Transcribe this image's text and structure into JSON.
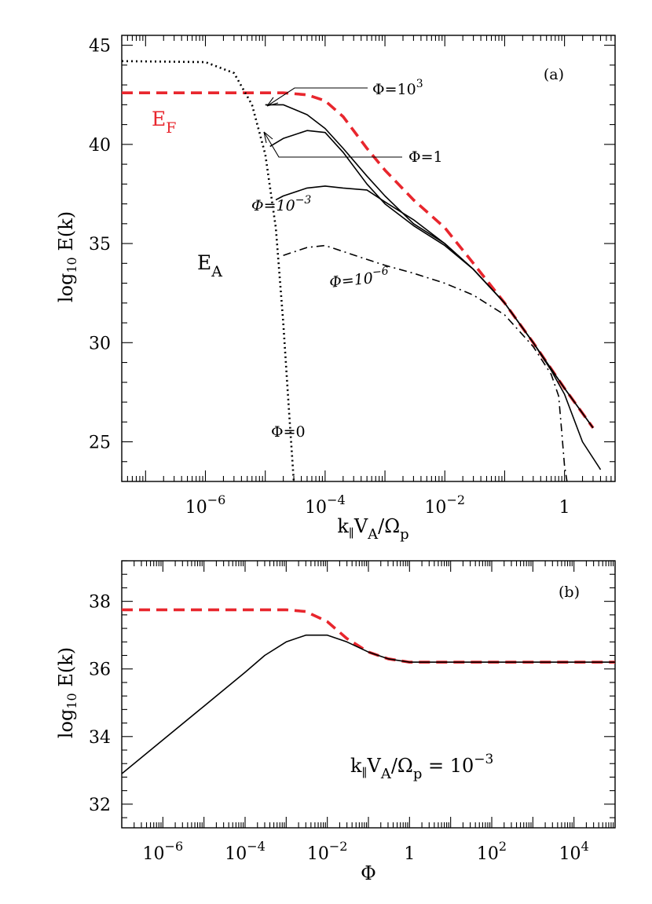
{
  "chart_data": [
    {
      "panel_label": "(a)",
      "type": "line",
      "x_scale": "log",
      "xlabel": "k∥VA/Ωp",
      "ylabel": "log10 E(k)",
      "xlim": [
        4e-08,
        7
      ],
      "ylim": [
        23,
        45.5
      ],
      "x_ticks": [
        {
          "value": 1e-06,
          "base": "10",
          "exp": "−6"
        },
        {
          "value": 0.0001,
          "base": "10",
          "exp": "−4"
        },
        {
          "value": 0.01,
          "base": "10",
          "exp": "−2"
        },
        {
          "value": 1,
          "base": "1",
          "exp": ""
        }
      ],
      "y_ticks": [
        25,
        30,
        35,
        40,
        45
      ],
      "series": [
        {
          "style": "dashed",
          "color": "#e8262d",
          "x": [
            4e-08,
            1e-06,
            1e-05,
            2e-05,
            5e-05,
            0.0001,
            0.0002,
            0.0005,
            0.001,
            0.003,
            0.01,
            0.03,
            0.1,
            0.3,
            1,
            3
          ],
          "y": [
            42.6,
            42.6,
            42.6,
            42.6,
            42.5,
            42.2,
            41.4,
            39.8,
            38.7,
            37.2,
            35.8,
            34.0,
            32.0,
            30.0,
            27.7,
            25.7
          ]
        },
        {
          "style": "dotted",
          "color": "#000000",
          "x": [
            4e-08,
            1e-06,
            3e-06,
            6e-06,
            1e-05,
            1.5e-05,
            2e-05,
            2.5e-05,
            3e-05
          ],
          "y": [
            44.2,
            44.15,
            43.6,
            42.0,
            39.5,
            35.8,
            31.0,
            26.5,
            23.0
          ]
        },
        {
          "style": "solid",
          "color": "#000000",
          "x": [
            1e-05,
            2e-05,
            5e-05,
            0.0001,
            0.0002,
            0.0005,
            0.001,
            0.003,
            0.01,
            0.03,
            0.1,
            0.3,
            1,
            3
          ],
          "y": [
            42.0,
            42.0,
            41.5,
            40.8,
            39.8,
            38.4,
            37.4,
            36.0,
            35.0,
            33.7,
            32.0,
            30.0,
            27.7,
            25.7
          ]
        },
        {
          "style": "solid",
          "color": "#000000",
          "x": [
            1.2e-05,
            2e-05,
            5e-05,
            0.0001,
            0.0002,
            0.0005,
            0.001,
            0.003,
            0.01,
            0.03,
            0.1,
            0.3,
            1,
            3
          ],
          "y": [
            39.9,
            40.3,
            40.7,
            40.6,
            39.6,
            38.0,
            37.0,
            35.9,
            34.9,
            33.7,
            32.0,
            30.0,
            27.7,
            25.7
          ]
        },
        {
          "style": "solid",
          "color": "#000000",
          "x": [
            1.5e-05,
            2e-05,
            5e-05,
            0.0001,
            0.0002,
            0.0005,
            0.001,
            0.003,
            0.01,
            0.03,
            0.1,
            0.3,
            0.6,
            1,
            2,
            4
          ],
          "y": [
            37.2,
            37.4,
            37.8,
            37.9,
            37.8,
            37.7,
            37.1,
            36.2,
            35.0,
            33.7,
            32.0,
            30.0,
            28.6,
            27.4,
            25.0,
            23.6
          ]
        },
        {
          "style": "dashdot",
          "color": "#000000",
          "x": [
            2e-05,
            5e-05,
            0.0001,
            0.0002,
            0.0005,
            0.001,
            0.003,
            0.01,
            0.03,
            0.1,
            0.3,
            0.6,
            0.8,
            0.9,
            1.0,
            1.1
          ],
          "y": [
            34.4,
            34.8,
            34.9,
            34.6,
            34.2,
            33.9,
            33.5,
            33.0,
            32.4,
            31.4,
            29.8,
            28.4,
            27.3,
            25.5,
            23.8,
            23.0
          ]
        }
      ],
      "annotations": {
        "phi_1e3": {
          "base": "Φ=10",
          "exp": "3"
        },
        "phi_1": {
          "text": "Φ=1"
        },
        "phi_1em3": {
          "base": "Φ=10",
          "exp": "−3"
        },
        "phi_1em6": {
          "base": "Φ=10",
          "exp": "−6"
        },
        "phi_0": {
          "text": "Φ=0"
        },
        "e_f": {
          "base": "E",
          "sub": "F",
          "color": "#e8262d"
        },
        "e_a": {
          "base": "E",
          "sub": "A"
        }
      }
    },
    {
      "panel_label": "(b)",
      "type": "line",
      "x_scale": "log",
      "xlabel": "Φ",
      "ylabel": "log10 E(k)",
      "xlim": [
        1e-07,
        100000.0
      ],
      "ylim": [
        31.3,
        39.2
      ],
      "x_ticks": [
        {
          "value": 1e-06,
          "base": "10",
          "exp": "−6"
        },
        {
          "value": 0.0001,
          "base": "10",
          "exp": "−4"
        },
        {
          "value": 0.01,
          "base": "10",
          "exp": "−2"
        },
        {
          "value": 1,
          "base": "1",
          "exp": ""
        },
        {
          "value": 100.0,
          "base": "10",
          "exp": "2"
        },
        {
          "value": 10000.0,
          "base": "10",
          "exp": "4"
        }
      ],
      "y_ticks": [
        32,
        34,
        36,
        38
      ],
      "series": [
        {
          "style": "dashed",
          "color": "#e8262d",
          "x": [
            1e-07,
            1e-05,
            0.0001,
            0.001,
            0.003,
            0.01,
            0.03,
            0.1,
            0.3,
            1,
            10,
            100,
            1000,
            10000.0,
            100000.0
          ],
          "y": [
            37.75,
            37.75,
            37.75,
            37.75,
            37.7,
            37.4,
            36.9,
            36.5,
            36.3,
            36.2,
            36.2,
            36.2,
            36.2,
            36.2,
            36.2
          ]
        },
        {
          "style": "solid",
          "color": "#000000",
          "x": [
            1e-07,
            1e-06,
            1e-05,
            0.0001,
            0.0003,
            0.001,
            0.003,
            0.01,
            0.03,
            0.1,
            0.3,
            1,
            10,
            100,
            1000,
            10000.0,
            100000.0
          ],
          "y": [
            32.9,
            33.9,
            34.9,
            35.9,
            36.4,
            36.8,
            37.0,
            37.0,
            36.8,
            36.5,
            36.3,
            36.2,
            36.2,
            36.2,
            36.2,
            36.2,
            36.2
          ]
        }
      ],
      "annotations": {
        "k_label": {
          "prefix": "k∥VA/Ωp = 10",
          "exp": "−3"
        }
      }
    }
  ]
}
